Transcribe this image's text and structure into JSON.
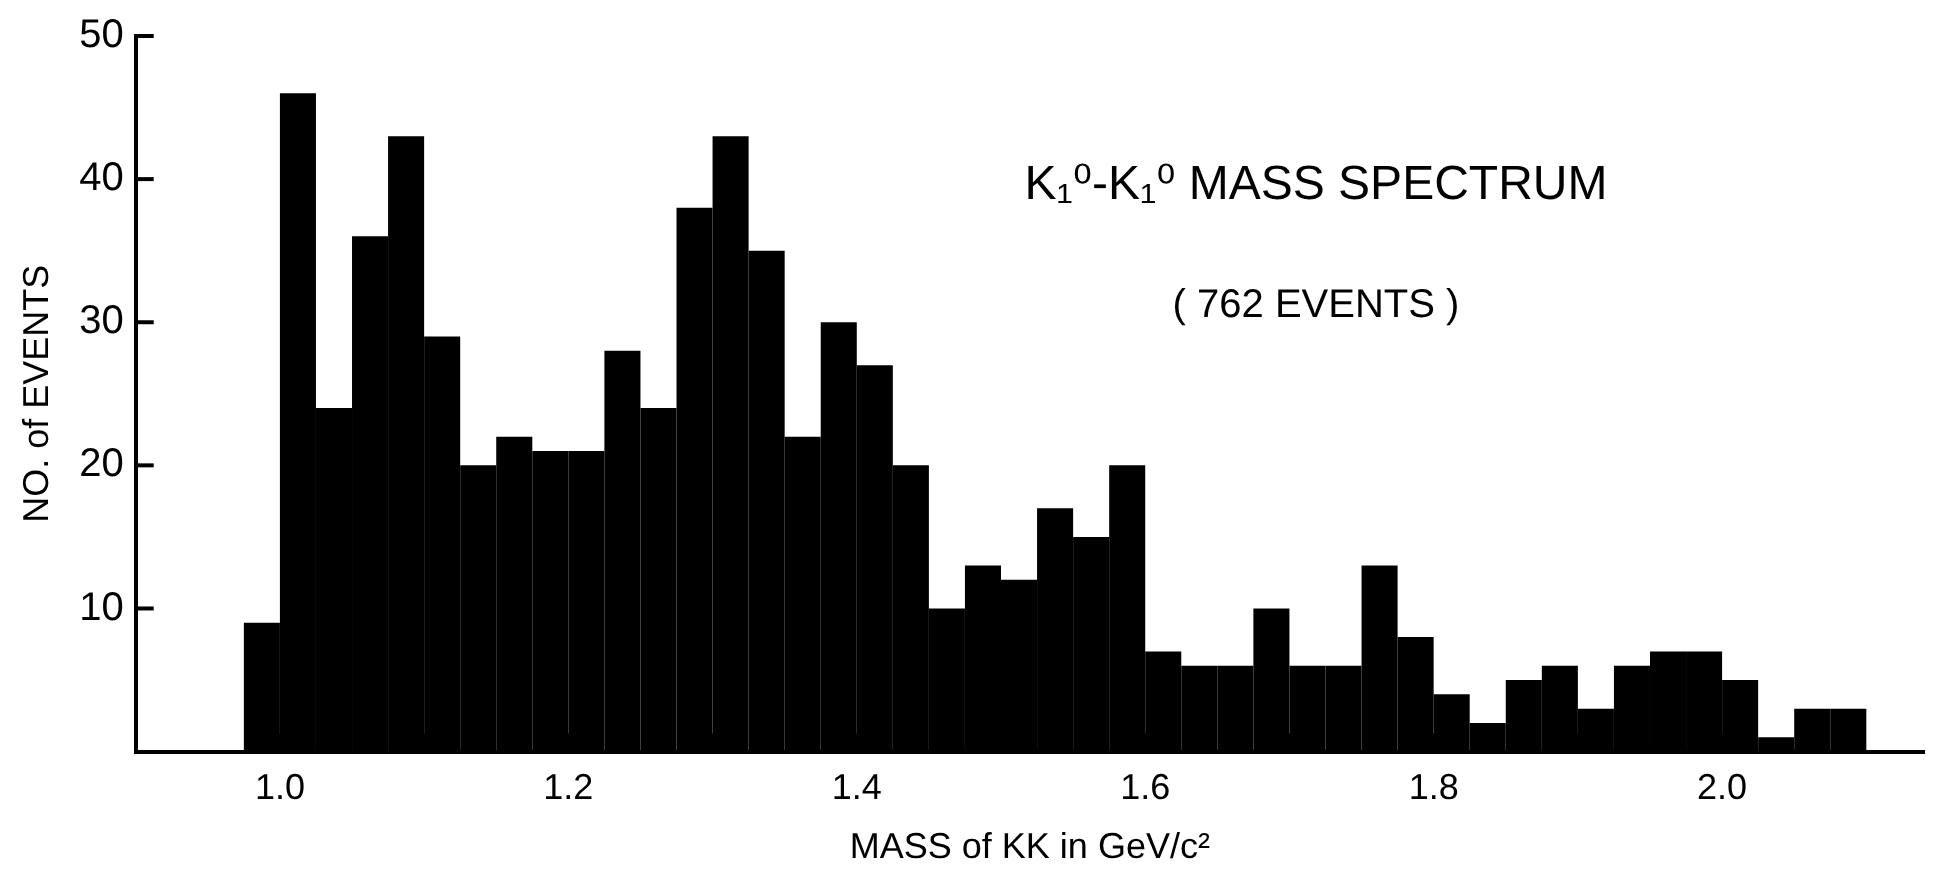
{
  "chart_data": {
    "type": "histogram",
    "title": "K₁⁰-K₁⁰ MASS SPECTRUM",
    "annotations": [
      "( 762 EVENTS )"
    ],
    "xlabel": "MASS of KK in GeV/c²",
    "ylabel": "NO. of EVENTS",
    "bins": [
      0.975,
      1.0,
      1.025,
      1.05,
      1.075,
      1.1,
      1.125,
      1.15,
      1.175,
      1.2,
      1.225,
      1.25,
      1.275,
      1.3,
      1.325,
      1.35,
      1.375,
      1.4,
      1.425,
      1.45,
      1.475,
      1.5,
      1.525,
      1.55,
      1.575,
      1.6,
      1.625,
      1.65,
      1.675,
      1.7,
      1.725,
      1.75,
      1.775,
      1.8,
      1.825,
      1.85,
      1.875,
      1.9,
      1.925,
      1.95,
      1.975,
      2.0,
      2.025,
      2.05,
      2.075,
      2.1
    ],
    "values": [
      9,
      46,
      24,
      36,
      43,
      29,
      20,
      22,
      21,
      21,
      28,
      24,
      38,
      43,
      35,
      22,
      30,
      27,
      20,
      10,
      13,
      12,
      17,
      15,
      20,
      7,
      6,
      6,
      10,
      6,
      6,
      13,
      8,
      4,
      2,
      5,
      6,
      3,
      6,
      7,
      7,
      5,
      1,
      3,
      3
    ],
    "color": "#000000",
    "xlim": [
      0.9,
      2.14
    ],
    "xticks": [
      {
        "value": 1.0,
        "label": "1.0"
      },
      {
        "value": 1.1,
        "label": null
      },
      1.2,
      {
        "value": 1.3,
        "label": null
      },
      1.4,
      {
        "value": 1.5,
        "label": null
      },
      1.6,
      {
        "value": 1.7,
        "label": null
      },
      1.8,
      {
        "value": 1.9,
        "label": null
      },
      {
        "value": 2.0,
        "label": "2.0"
      }
    ],
    "ylim": [
      0,
      50
    ],
    "yticks": [
      10,
      20,
      30,
      40,
      50
    ],
    "grid": false,
    "legend": false
  }
}
